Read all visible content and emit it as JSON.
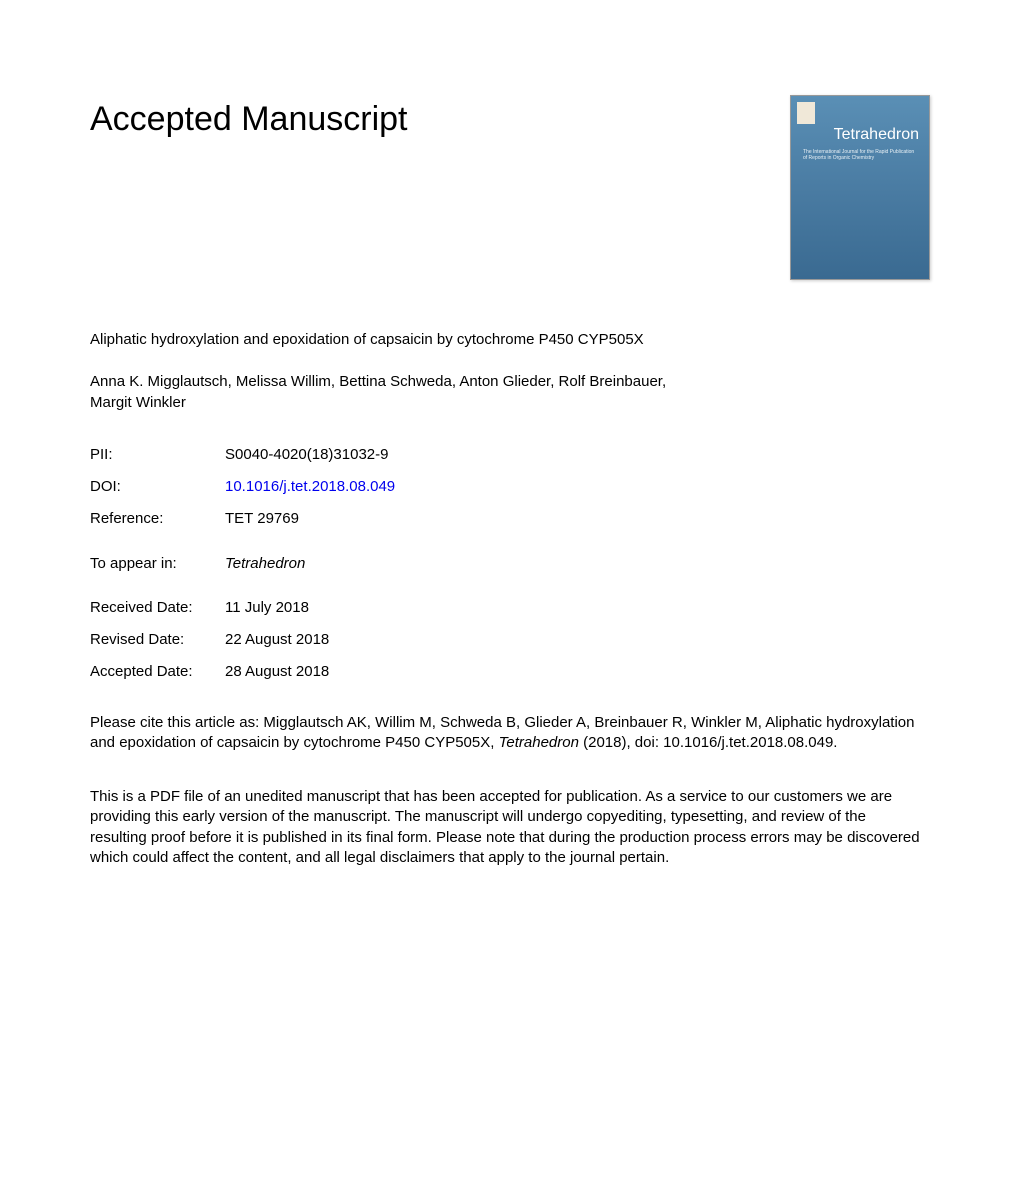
{
  "heading": "Accepted Manuscript",
  "journal_cover": {
    "title": "Tetrahedron",
    "subtitle": "The International Journal for the Rapid Publication of Reports in Organic Chemistry"
  },
  "article_title": "Aliphatic hydroxylation and epoxidation of capsaicin by cytochrome P450 CYP505X",
  "authors": "Anna K. Migglautsch, Melissa Willim, Bettina Schweda, Anton Glieder, Rolf Breinbauer, Margit Winkler",
  "metadata": {
    "pii_label": "PII:",
    "pii_value": "S0040-4020(18)31032-9",
    "doi_label": "DOI:",
    "doi_value": "10.1016/j.tet.2018.08.049",
    "reference_label": "Reference:",
    "reference_value": "TET 29769",
    "appear_label": "To appear in:",
    "appear_value": "Tetrahedron",
    "received_label": "Received Date:",
    "received_value": "11 July 2018",
    "revised_label": "Revised Date:",
    "revised_value": "22 August 2018",
    "accepted_label": "Accepted Date:",
    "accepted_value": "28 August 2018"
  },
  "citation": {
    "prefix": "Please cite this article as: Migglautsch AK, Willim M, Schweda B, Glieder A, Breinbauer R, Winkler M, Aliphatic hydroxylation and epoxidation of capsaicin by cytochrome P450 CYP505X, ",
    "journal": "Tetrahedron",
    "suffix": " (2018), doi: 10.1016/j.tet.2018.08.049."
  },
  "disclaimer": "This is a PDF file of an unedited manuscript that has been accepted for publication. As a service to our customers we are providing this early version of the manuscript. The manuscript will undergo copyediting, typesetting, and review of the resulting proof before it is published in its final form. Please note that during the production process errors may be discovered which could affect the content, and all legal disclaimers that apply to the journal pertain."
}
